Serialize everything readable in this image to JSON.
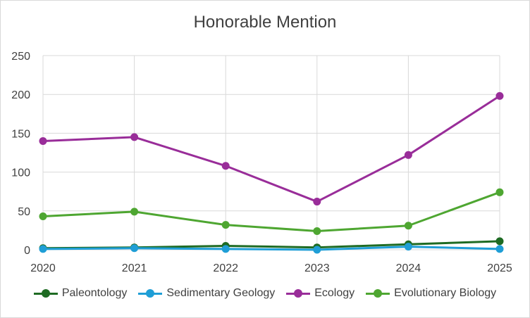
{
  "chart_data": {
    "type": "line",
    "title": "Honorable Mention",
    "xlabel": "",
    "ylabel": "",
    "categories": [
      "2020",
      "2021",
      "2022",
      "2023",
      "2024",
      "2025"
    ],
    "ylim": [
      0,
      250
    ],
    "yticks": [
      0,
      50,
      100,
      150,
      200,
      250
    ],
    "grid": "both",
    "legend_position": "bottom",
    "series": [
      {
        "name": "Paleontology",
        "color": "#1e6b23",
        "values": [
          2,
          3,
          5,
          3,
          7,
          11
        ]
      },
      {
        "name": "Sedimentary Geology",
        "color": "#1f9ed6",
        "values": [
          1,
          2,
          1,
          0,
          4,
          1
        ]
      },
      {
        "name": "Ecology",
        "color": "#992d99",
        "values": [
          140,
          145,
          108,
          62,
          122,
          198
        ]
      },
      {
        "name": "Evolutionary Biology",
        "color": "#4ea631",
        "values": [
          43,
          49,
          32,
          24,
          31,
          74
        ]
      }
    ]
  }
}
